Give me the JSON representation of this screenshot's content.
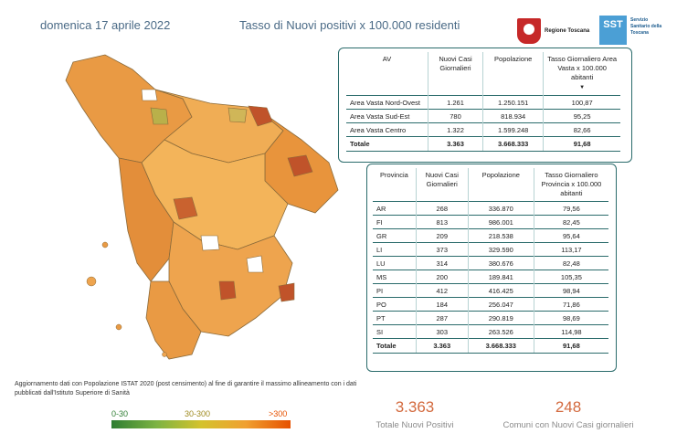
{
  "header": {
    "date": "domenica 17 aprile 2022",
    "title": "Tasso di Nuovi positivi x 100.000 residenti"
  },
  "logos": {
    "regione": "Regione Toscana",
    "sst_badge": "SST",
    "sst": "Servizio Sanitario della Toscana"
  },
  "area_table": {
    "headers": [
      "AV",
      "Nuovi Casi Giornalieri",
      "Popolazione",
      "Tasso Giornaliero Area Vasta x 100.000 abitanti"
    ],
    "rows": [
      {
        "name": "Area Vasta Nord-Ovest",
        "cases": "1.261",
        "pop": "1.250.151",
        "rate": "100,87"
      },
      {
        "name": "Area Vasta Sud-Est",
        "cases": "780",
        "pop": "818.934",
        "rate": "95,25"
      },
      {
        "name": "Area Vasta Centro",
        "cases": "1.322",
        "pop": "1.599.248",
        "rate": "82,66"
      }
    ],
    "total": {
      "name": "Totale",
      "cases": "3.363",
      "pop": "3.668.333",
      "rate": "91,68"
    }
  },
  "province_table": {
    "headers": [
      "Provincia",
      "Nuovi Casi Giornalieri",
      "Popolazione",
      "Tasso Giornaliero Provincia x 100.000 abitanti"
    ],
    "rows": [
      {
        "name": "AR",
        "cases": "268",
        "pop": "336.870",
        "rate": "79,56"
      },
      {
        "name": "FI",
        "cases": "813",
        "pop": "986.001",
        "rate": "82,45"
      },
      {
        "name": "GR",
        "cases": "209",
        "pop": "218.538",
        "rate": "95,64"
      },
      {
        "name": "LI",
        "cases": "373",
        "pop": "329.590",
        "rate": "113,17"
      },
      {
        "name": "LU",
        "cases": "314",
        "pop": "380.676",
        "rate": "82,48"
      },
      {
        "name": "MS",
        "cases": "200",
        "pop": "189.841",
        "rate": "105,35"
      },
      {
        "name": "PI",
        "cases": "412",
        "pop": "416.425",
        "rate": "98,94"
      },
      {
        "name": "PO",
        "cases": "184",
        "pop": "256.047",
        "rate": "71,86"
      },
      {
        "name": "PT",
        "cases": "287",
        "pop": "290.819",
        "rate": "98,69"
      },
      {
        "name": "SI",
        "cases": "303",
        "pop": "263.526",
        "rate": "114,98"
      }
    ],
    "total": {
      "name": "Totale",
      "cases": "3.363",
      "pop": "3.668.333",
      "rate": "91,68"
    }
  },
  "note": "Aggiornamento dati con Popolazione ISTAT 2020 (post censimento) al fine di garantire il massimo allineamento con i dati pubblicati dall'Istituto Superiore di Sanità",
  "legend": {
    "labels": [
      "0-30",
      "30-300",
      ">300"
    ],
    "label_colors": [
      "#2e7d32",
      "#9e8a1f",
      "#e65100"
    ]
  },
  "kpis": [
    {
      "value": "3.363",
      "label": "Totale Nuovi Positivi"
    },
    {
      "value": "248",
      "label": "Comuni con Nuovi Casi giornalieri"
    }
  ],
  "colors": {
    "accent": "#d36a3e",
    "table_border": "#2a6b6b",
    "map_light": "#f3b45a",
    "map_mid": "#e8943c",
    "map_dark": "#c0532a",
    "map_green": "#b9b04a"
  },
  "icons": [
    "regione-toscana-logo",
    "sst-logo",
    "sort-down-icon"
  ]
}
